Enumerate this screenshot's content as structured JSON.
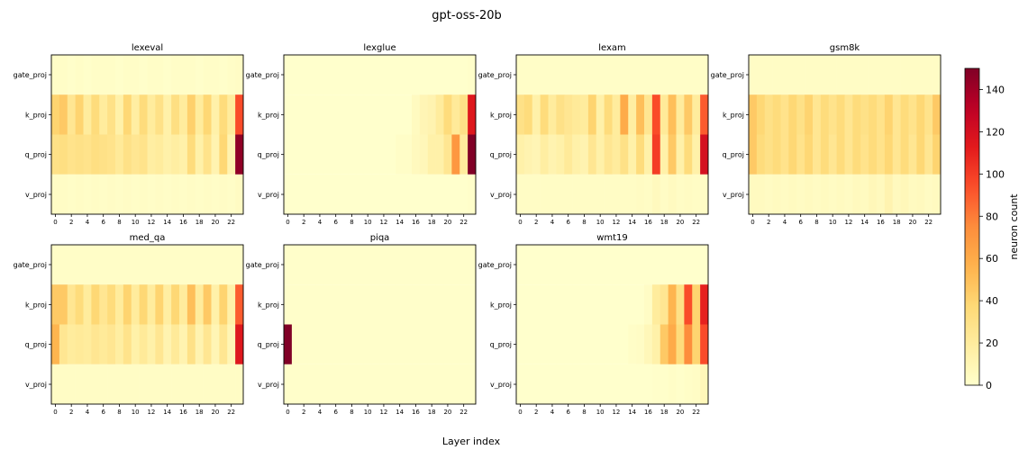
{
  "figure": {
    "title": "gpt-oss-20b",
    "xlabel": "Layer index",
    "colorbar_label": "neuron count"
  },
  "chart_data": {
    "type": "heatmap",
    "colormap": "YlOrRd",
    "color_range": [
      0,
      150
    ],
    "colorbar_ticks": [
      0,
      20,
      40,
      60,
      80,
      100,
      120,
      140
    ],
    "rows": [
      "gate_proj",
      "k_proj",
      "q_proj",
      "v_proj"
    ],
    "layers": [
      0,
      1,
      2,
      3,
      4,
      5,
      6,
      7,
      8,
      9,
      10,
      11,
      12,
      13,
      14,
      15,
      16,
      17,
      18,
      19,
      20,
      21,
      22,
      23
    ],
    "x_tick_labels": [
      "0",
      "2",
      "4",
      "6",
      "8",
      "10",
      "12",
      "14",
      "16",
      "18",
      "20",
      "22"
    ],
    "panels": [
      {
        "name": "lexeval",
        "values": {
          "gate_proj": [
            2,
            2,
            1,
            2,
            1,
            2,
            2,
            2,
            1,
            2,
            2,
            1,
            2,
            2,
            1,
            2,
            2,
            2,
            1,
            2,
            2,
            1,
            2,
            3
          ],
          "k_proj": [
            40,
            45,
            25,
            40,
            20,
            35,
            20,
            30,
            15,
            38,
            18,
            35,
            20,
            30,
            15,
            32,
            20,
            42,
            20,
            38,
            15,
            35,
            20,
            95
          ],
          "q_proj": [
            30,
            32,
            28,
            30,
            28,
            32,
            30,
            28,
            22,
            30,
            25,
            28,
            18,
            20,
            15,
            18,
            15,
            35,
            15,
            28,
            12,
            38,
            12,
            145
          ],
          "v_proj": [
            3,
            3,
            2,
            3,
            2,
            3,
            2,
            3,
            2,
            3,
            2,
            3,
            2,
            3,
            2,
            3,
            2,
            3,
            2,
            3,
            2,
            3,
            2,
            4
          ]
        }
      },
      {
        "name": "lexglue",
        "values": {
          "gate_proj": [
            0,
            0,
            0,
            0,
            0,
            0,
            0,
            0,
            0,
            0,
            0,
            0,
            0,
            0,
            0,
            0,
            0,
            0,
            0,
            0,
            0,
            0,
            0,
            1
          ],
          "k_proj": [
            0,
            0,
            0,
            0,
            0,
            0,
            0,
            0,
            0,
            0,
            0,
            0,
            0,
            0,
            0,
            0,
            5,
            10,
            12,
            20,
            35,
            22,
            30,
            115
          ],
          "q_proj": [
            0,
            0,
            0,
            0,
            0,
            0,
            0,
            0,
            0,
            0,
            0,
            0,
            0,
            0,
            2,
            2,
            6,
            8,
            15,
            15,
            25,
            70,
            20,
            150
          ],
          "v_proj": [
            0,
            0,
            0,
            0,
            0,
            0,
            0,
            0,
            0,
            0,
            0,
            0,
            0,
            0,
            0,
            0,
            0,
            0,
            0,
            0,
            0,
            0,
            0,
            1
          ]
        }
      },
      {
        "name": "lexam",
        "values": {
          "gate_proj": [
            2,
            2,
            2,
            2,
            2,
            2,
            2,
            2,
            2,
            2,
            2,
            2,
            2,
            2,
            2,
            2,
            2,
            2,
            2,
            2,
            2,
            2,
            2,
            2
          ],
          "k_proj": [
            30,
            35,
            15,
            35,
            20,
            30,
            25,
            22,
            20,
            40,
            15,
            35,
            20,
            60,
            18,
            50,
            25,
            95,
            22,
            50,
            20,
            45,
            20,
            90
          ],
          "q_proj": [
            15,
            12,
            10,
            18,
            12,
            15,
            22,
            15,
            12,
            25,
            15,
            25,
            20,
            30,
            15,
            35,
            15,
            100,
            15,
            45,
            15,
            35,
            15,
            120
          ],
          "v_proj": [
            3,
            3,
            3,
            3,
            3,
            3,
            3,
            3,
            3,
            3,
            3,
            3,
            3,
            3,
            3,
            4,
            3,
            6,
            3,
            5,
            3,
            4,
            3,
            3
          ]
        }
      },
      {
        "name": "gsm8k",
        "values": {
          "gate_proj": [
            3,
            3,
            3,
            3,
            3,
            3,
            3,
            3,
            3,
            3,
            3,
            3,
            3,
            3,
            3,
            3,
            3,
            3,
            3,
            3,
            3,
            3,
            3,
            3
          ],
          "k_proj": [
            45,
            38,
            30,
            35,
            28,
            38,
            30,
            40,
            25,
            35,
            28,
            35,
            25,
            35,
            30,
            35,
            28,
            40,
            25,
            35,
            28,
            38,
            28,
            45
          ],
          "q_proj": [
            45,
            35,
            30,
            35,
            28,
            38,
            28,
            38,
            25,
            35,
            25,
            35,
            25,
            35,
            28,
            35,
            28,
            38,
            25,
            35,
            25,
            38,
            25,
            40
          ],
          "v_proj": [
            5,
            5,
            4,
            5,
            4,
            5,
            4,
            5,
            4,
            5,
            4,
            5,
            4,
            6,
            5,
            8,
            6,
            12,
            6,
            8,
            5,
            6,
            4,
            5
          ]
        }
      },
      {
        "name": "med_qa",
        "values": {
          "gate_proj": [
            2,
            2,
            2,
            2,
            2,
            2,
            2,
            2,
            2,
            2,
            2,
            2,
            2,
            2,
            2,
            2,
            2,
            2,
            2,
            2,
            2,
            2,
            2,
            2
          ],
          "k_proj": [
            45,
            45,
            25,
            35,
            20,
            38,
            25,
            35,
            20,
            40,
            20,
            38,
            20,
            40,
            18,
            38,
            20,
            50,
            20,
            45,
            15,
            40,
            15,
            90
          ],
          "q_proj": [
            55,
            25,
            20,
            22,
            20,
            25,
            22,
            25,
            18,
            28,
            15,
            22,
            15,
            25,
            12,
            22,
            12,
            30,
            12,
            25,
            10,
            25,
            10,
            115
          ],
          "v_proj": [
            3,
            3,
            3,
            3,
            3,
            3,
            3,
            3,
            3,
            3,
            3,
            3,
            3,
            3,
            3,
            3,
            3,
            3,
            3,
            3,
            3,
            3,
            3,
            3
          ]
        }
      },
      {
        "name": "piqa",
        "values": {
          "gate_proj": [
            1,
            1,
            1,
            1,
            1,
            1,
            1,
            1,
            1,
            1,
            1,
            1,
            1,
            1,
            1,
            1,
            1,
            1,
            1,
            1,
            1,
            1,
            1,
            1
          ],
          "k_proj": [
            1,
            1,
            1,
            1,
            1,
            1,
            1,
            1,
            1,
            1,
            1,
            1,
            1,
            1,
            1,
            1,
            1,
            1,
            1,
            1,
            1,
            1,
            1,
            1
          ],
          "q_proj": [
            150,
            2,
            1,
            1,
            1,
            1,
            1,
            1,
            1,
            1,
            1,
            1,
            1,
            1,
            1,
            1,
            1,
            1,
            1,
            1,
            1,
            1,
            1,
            1
          ],
          "v_proj": [
            1,
            1,
            1,
            1,
            1,
            1,
            1,
            1,
            1,
            1,
            1,
            1,
            1,
            1,
            1,
            1,
            1,
            1,
            1,
            1,
            1,
            1,
            1,
            1
          ]
        }
      },
      {
        "name": "wmt19",
        "values": {
          "gate_proj": [
            0,
            0,
            0,
            0,
            0,
            0,
            0,
            0,
            0,
            0,
            0,
            0,
            0,
            0,
            0,
            0,
            0,
            0,
            0,
            0,
            0,
            0,
            0,
            0
          ],
          "k_proj": [
            0,
            0,
            0,
            0,
            0,
            0,
            0,
            0,
            0,
            0,
            0,
            0,
            0,
            0,
            0,
            0,
            3,
            20,
            25,
            55,
            30,
            95,
            40,
            110
          ],
          "q_proj": [
            0,
            0,
            0,
            0,
            0,
            0,
            0,
            0,
            0,
            0,
            0,
            0,
            0,
            0,
            2,
            3,
            8,
            15,
            45,
            60,
            35,
            75,
            40,
            95
          ],
          "v_proj": [
            0,
            0,
            0,
            0,
            0,
            0,
            0,
            0,
            0,
            0,
            0,
            0,
            0,
            0,
            0,
            0,
            0,
            1,
            1,
            2,
            1,
            2,
            3,
            8
          ]
        }
      }
    ]
  }
}
